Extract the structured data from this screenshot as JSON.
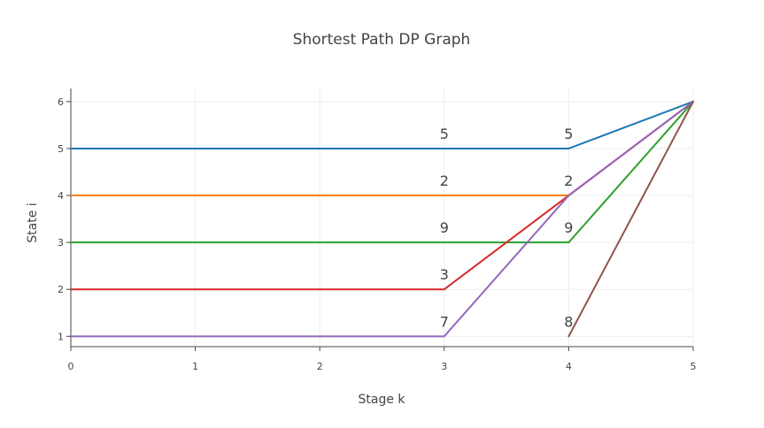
{
  "chart_data": {
    "type": "line",
    "title": "Shortest Path DP Graph",
    "xlabel": "Stage k",
    "ylabel": "State i",
    "xlim": [
      0,
      5
    ],
    "ylim": [
      0.78,
      6.28
    ],
    "x_ticks": [
      0,
      1,
      2,
      3,
      4,
      5
    ],
    "y_ticks": [
      1,
      2,
      3,
      4,
      5,
      6
    ],
    "grid": true,
    "legend": "none",
    "series": [
      {
        "color": "#1f77b4",
        "points": [
          [
            0,
            5
          ],
          [
            3,
            5
          ],
          [
            4,
            5
          ],
          [
            5,
            6
          ]
        ]
      },
      {
        "color": "#ff7f0e",
        "points": [
          [
            0,
            4
          ],
          [
            3,
            4
          ],
          [
            4,
            4
          ],
          [
            5,
            6
          ]
        ]
      },
      {
        "color": "#2ca02c",
        "points": [
          [
            0,
            3
          ],
          [
            3,
            3
          ],
          [
            4,
            3
          ],
          [
            5,
            6
          ]
        ]
      },
      {
        "color": "#d62728",
        "points": [
          [
            0,
            2
          ],
          [
            3,
            2
          ],
          [
            4,
            4
          ],
          [
            5,
            6
          ]
        ]
      },
      {
        "color": "#9467bd",
        "points": [
          [
            0,
            1
          ],
          [
            3,
            1
          ],
          [
            4,
            4
          ],
          [
            5,
            6
          ]
        ]
      },
      {
        "color": "#8c564b",
        "points": [
          [
            4,
            1
          ],
          [
            5,
            6
          ]
        ]
      }
    ],
    "annotations": [
      {
        "text": "5",
        "x": 3,
        "y": 5
      },
      {
        "text": "2",
        "x": 3,
        "y": 4
      },
      {
        "text": "9",
        "x": 3,
        "y": 3
      },
      {
        "text": "3",
        "x": 3,
        "y": 2
      },
      {
        "text": "7",
        "x": 3,
        "y": 1
      },
      {
        "text": "5",
        "x": 4,
        "y": 5
      },
      {
        "text": "2",
        "x": 4,
        "y": 4
      },
      {
        "text": "9",
        "x": 4,
        "y": 3
      },
      {
        "text": "8",
        "x": 4,
        "y": 1
      }
    ]
  }
}
